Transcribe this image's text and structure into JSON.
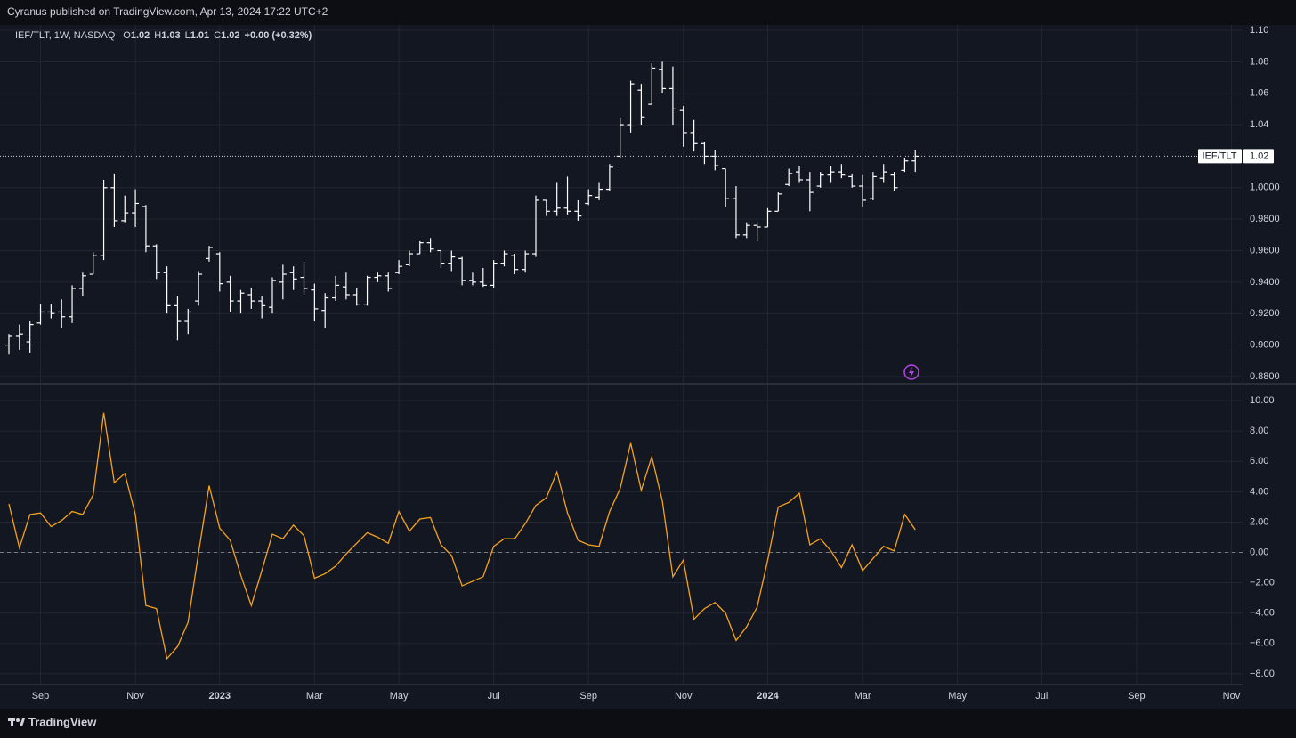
{
  "header": "Cyranus published on TradingView.com, Apr 13, 2024 17:22 UTC+2",
  "brand": "TradingView",
  "chart_data": [
    {
      "type": "ohlc",
      "legend": {
        "symbol": "IEF/TLT, 1W, NASDAQ",
        "fields": [
          {
            "key": "O",
            "value": 1.02
          },
          {
            "key": "H",
            "value": 1.03
          },
          {
            "key": "L",
            "value": 1.01
          },
          {
            "key": "C",
            "value": 1.02
          }
        ],
        "change": "+0.00",
        "change_pct": "(+0.32%)"
      },
      "last_price": 1.02,
      "last_label": "IEF/TLT",
      "color": "#ffffff",
      "grid": true,
      "ylim": [
        0.876,
        1.1034
      ],
      "yticks": [
        {
          "value": 1.1,
          "label": "1.10"
        },
        1.08,
        1.06,
        1.04,
        {
          "value": 1.0,
          "label": "1.0000"
        },
        {
          "value": 0.98,
          "label": "0.9800"
        },
        {
          "value": 0.96,
          "label": "0.9600"
        },
        {
          "value": 0.94,
          "label": "0.9400"
        },
        {
          "value": 0.92,
          "label": "0.9200"
        },
        {
          "value": 0.9,
          "label": "0.9000"
        },
        {
          "value": 0.88,
          "label": "0.8800"
        }
      ],
      "open": [
        0.9,
        0.906,
        0.902,
        0.914,
        0.921,
        0.921,
        0.918,
        0.936,
        0.945,
        0.957,
        1.0,
        0.979,
        0.984,
        0.988,
        0.963,
        0.946,
        0.925,
        0.915,
        0.928,
        0.955,
        0.958,
        0.94,
        0.928,
        0.932,
        0.928,
        0.924,
        0.94,
        0.946,
        0.943,
        0.935,
        0.922,
        0.93,
        0.937,
        0.932,
        0.926,
        0.943,
        0.944,
        0.946,
        0.951,
        0.958,
        0.965,
        0.96,
        0.952,
        0.955,
        0.941,
        0.94,
        0.938,
        0.952,
        0.957,
        0.948,
        0.958,
        0.992,
        0.985,
        0.987,
        0.985,
        0.99,
        0.994,
        0.999,
        1.02,
        1.04,
        1.062,
        1.053,
        1.075,
        1.063,
        1.049,
        1.035,
        1.028,
        1.02,
        1.012,
        0.993,
        0.97,
        0.976,
        0.975,
        0.985,
        1.002,
        1.01,
        1.005,
        1.001,
        1.008,
        1.01,
        1.007,
        1.001,
        0.993,
        1.006,
        1.008,
        1.011,
        1.017,
        null,
        null,
        null,
        null,
        null,
        null,
        null,
        null,
        null,
        null,
        null,
        null,
        null,
        null,
        null,
        null,
        null,
        null,
        null,
        null,
        null,
        null,
        null,
        null,
        null,
        null,
        null,
        null,
        null,
        null
      ],
      "high": [
        0.907,
        0.913,
        0.915,
        0.926,
        0.926,
        0.929,
        0.938,
        0.946,
        0.959,
        1.005,
        1.009,
        0.995,
        0.999,
        0.989,
        0.964,
        0.95,
        0.931,
        0.923,
        0.947,
        0.963,
        0.959,
        0.944,
        0.935,
        0.936,
        0.931,
        0.943,
        0.951,
        0.95,
        0.953,
        0.939,
        0.933,
        0.944,
        0.946,
        0.936,
        0.944,
        0.946,
        0.946,
        0.954,
        0.96,
        0.966,
        0.968,
        0.96,
        0.96,
        0.956,
        0.946,
        0.949,
        0.954,
        0.96,
        0.958,
        0.96,
        0.995,
        0.992,
        1.003,
        1.007,
        0.992,
        0.999,
        1.003,
        1.015,
        1.044,
        1.068,
        1.066,
        1.079,
        1.08,
        1.077,
        1.052,
        1.043,
        1.029,
        1.024,
        1.012,
        1.001,
        0.978,
        0.978,
        0.987,
        0.997,
        1.012,
        1.014,
        1.01,
        1.01,
        1.014,
        1.015,
        1.009,
        1.008,
        1.01,
        1.015,
        1.01,
        1.019,
        1.024,
        null,
        null,
        null,
        null,
        null,
        null,
        null,
        null,
        null,
        null,
        null,
        null,
        null,
        null,
        null,
        null,
        null,
        null,
        null,
        null,
        null,
        null,
        null,
        null,
        null,
        null,
        null,
        null,
        null,
        null
      ],
      "low": [
        0.894,
        0.897,
        0.895,
        0.913,
        0.917,
        0.911,
        0.914,
        0.931,
        0.945,
        0.954,
        0.975,
        0.978,
        0.975,
        0.959,
        0.942,
        0.92,
        0.903,
        0.907,
        0.925,
        0.953,
        0.934,
        0.921,
        0.92,
        0.923,
        0.917,
        0.92,
        0.929,
        0.935,
        0.932,
        0.915,
        0.911,
        0.928,
        0.929,
        0.925,
        0.925,
        0.94,
        0.934,
        0.945,
        0.95,
        0.958,
        0.959,
        0.949,
        0.947,
        0.938,
        0.938,
        0.937,
        0.936,
        0.95,
        0.945,
        0.946,
        0.956,
        0.982,
        0.982,
        0.983,
        0.979,
        0.989,
        0.992,
        0.998,
        1.019,
        1.035,
        1.04,
        1.053,
        1.06,
        1.04,
        1.026,
        1.023,
        1.015,
        1.011,
        0.988,
        0.968,
        0.968,
        0.966,
        0.975,
        0.985,
        1.001,
        1.003,
        0.985,
        1.0,
        1.003,
        1.006,
        1.0,
        0.988,
        0.992,
        1.003,
        0.998,
        1.01,
        1.01,
        null,
        null,
        null,
        null,
        null,
        null,
        null,
        null,
        null,
        null,
        null,
        null,
        null,
        null,
        null,
        null,
        null,
        null,
        null,
        null,
        null,
        null,
        null,
        null,
        null,
        null,
        null,
        null,
        null,
        null
      ],
      "close": [
        0.906,
        0.907,
        0.913,
        0.921,
        0.92,
        0.918,
        0.936,
        0.944,
        0.957,
        1.0,
        0.979,
        0.984,
        0.99,
        0.963,
        0.946,
        0.925,
        0.915,
        0.921,
        0.945,
        0.962,
        0.939,
        0.928,
        0.933,
        0.928,
        0.925,
        0.941,
        0.945,
        0.942,
        0.936,
        0.923,
        0.93,
        0.938,
        0.932,
        0.926,
        0.943,
        0.944,
        0.936,
        0.95,
        0.958,
        0.965,
        0.961,
        0.952,
        0.956,
        0.941,
        0.94,
        0.938,
        0.952,
        0.958,
        0.948,
        0.958,
        0.992,
        0.985,
        0.987,
        0.985,
        0.982,
        0.995,
        0.999,
        1.013,
        1.04,
        1.066,
        1.045,
        1.076,
        1.063,
        1.05,
        1.035,
        1.028,
        1.02,
        1.014,
        0.993,
        0.97,
        0.976,
        0.975,
        0.985,
        0.996,
        1.009,
        1.005,
        0.997,
        1.008,
        1.01,
        1.008,
        1.001,
        0.992,
        1.007,
        1.01,
        1.0,
        1.017,
        1.02,
        null,
        null,
        null,
        null,
        null,
        null,
        null,
        null,
        null,
        null,
        null,
        null,
        null,
        null,
        null,
        null,
        null,
        null,
        null,
        null,
        null,
        null,
        null,
        null,
        null,
        null,
        null,
        null,
        null,
        null
      ]
    },
    {
      "type": "line",
      "categories": [
        null,
        null,
        null,
        "Sep",
        null,
        null,
        null,
        null,
        null,
        null,
        null,
        null,
        "Nov",
        null,
        null,
        null,
        null,
        null,
        null,
        null,
        "2023",
        null,
        null,
        null,
        null,
        null,
        null,
        null,
        null,
        "Mar",
        null,
        null,
        null,
        null,
        null,
        null,
        null,
        "May",
        null,
        null,
        null,
        null,
        null,
        null,
        null,
        null,
        "Jul",
        null,
        null,
        null,
        null,
        null,
        null,
        null,
        null,
        "Sep",
        null,
        null,
        null,
        null,
        null,
        null,
        null,
        null,
        "Nov",
        null,
        null,
        null,
        null,
        null,
        null,
        null,
        "2024",
        null,
        null,
        null,
        null,
        null,
        null,
        null,
        null,
        "Mar",
        null,
        null,
        null,
        null,
        null,
        null,
        null,
        null,
        "May",
        null,
        null,
        null,
        null,
        null,
        null,
        null,
        "Jul",
        null,
        null,
        null,
        null,
        null,
        null,
        null,
        null,
        "Sep",
        null,
        null,
        null,
        null,
        null,
        null,
        null,
        null,
        "Nov"
      ],
      "color": "#f7a21b",
      "grid": true,
      "hline": 0,
      "ylim": [
        -8.65,
        11.06
      ],
      "yticks": [
        {
          "value": 10,
          "label": "10.00"
        },
        {
          "value": 8,
          "label": "8.00"
        },
        {
          "value": 6,
          "label": "6.00"
        },
        {
          "value": 4,
          "label": "4.00"
        },
        {
          "value": 2,
          "label": "2.00"
        },
        {
          "value": 0,
          "label": "0.00"
        },
        {
          "value": -2,
          "label": "−2.00"
        },
        {
          "value": -4,
          "label": "−4.00"
        },
        {
          "value": -6,
          "label": "−6.00"
        },
        {
          "value": -8,
          "label": "−8.00"
        }
      ],
      "values": [
        3.2,
        0.3,
        2.5,
        2.6,
        1.7,
        2.1,
        2.7,
        2.5,
        3.8,
        9.2,
        4.6,
        5.2,
        2.5,
        -3.5,
        -3.7,
        -7.0,
        -6.2,
        -4.6,
        0.0,
        4.4,
        1.6,
        0.8,
        -1.5,
        -3.5,
        -1.2,
        1.2,
        0.9,
        1.8,
        1.1,
        -1.7,
        -1.4,
        -0.9,
        -0.1,
        0.6,
        1.3,
        1.0,
        0.6,
        2.7,
        1.4,
        2.2,
        2.3,
        0.5,
        -0.2,
        -2.2,
        -1.9,
        -1.6,
        0.4,
        0.9,
        0.9,
        1.9,
        3.1,
        3.6,
        5.3,
        2.6,
        0.8,
        0.5,
        0.4,
        2.7,
        4.2,
        7.2,
        4.1,
        6.3,
        3.4,
        -1.6,
        -0.5,
        -4.4,
        -3.7,
        -3.3,
        -4.0,
        -5.8,
        -4.9,
        -3.6,
        -0.5,
        3.0,
        3.3,
        3.9,
        0.5,
        0.9,
        0.1,
        -1.0,
        0.5,
        -1.2,
        -0.4,
        0.4,
        0.1,
        2.5,
        1.5,
        null,
        null,
        null,
        null,
        null,
        null,
        null,
        null,
        null,
        null,
        null,
        null,
        null,
        null,
        null,
        null,
        null,
        null,
        null,
        null,
        null,
        null,
        null,
        null,
        null,
        null,
        null,
        null,
        null,
        null
      ]
    }
  ]
}
